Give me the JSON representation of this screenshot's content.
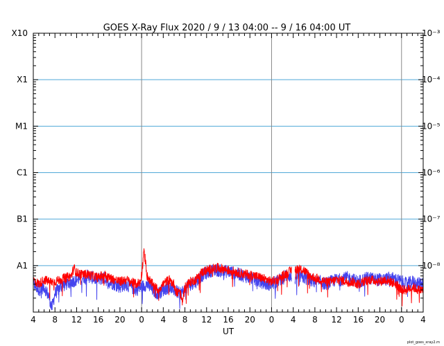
{
  "chart_data": {
    "type": "line",
    "title": "GOES X-Ray Flux   2020  /  9  /  13    04:00 --   9  /  16    04:00    UT",
    "xlabel": "UT",
    "x_tick_labels": [
      "4",
      "8",
      "12",
      "16",
      "20",
      "0",
      "4",
      "8",
      "12",
      "16",
      "20",
      "0",
      "4",
      "8",
      "12",
      "16",
      "20",
      "0",
      "4"
    ],
    "x_range_hours": [
      0,
      72
    ],
    "day_boundaries_hours": [
      20,
      44,
      68
    ],
    "y_scale": "log",
    "y_range": [
      1e-09,
      0.001
    ],
    "y_left_labels": [
      "X10",
      "X1",
      "M1",
      "C1",
      "B1",
      "A1"
    ],
    "y_right_labels": [
      "10⁻³",
      "10⁻⁴",
      "10⁻⁵",
      "10⁻⁶",
      "10⁻⁷",
      "10⁻⁸"
    ],
    "y_right_decades": [
      -3,
      -4,
      -5,
      -6,
      -7,
      -8
    ],
    "grid_lines_flux": [
      0.0001,
      1e-05,
      1e-06,
      1e-07,
      1e-08
    ],
    "series": [
      {
        "color": "#ff0000",
        "points": [
          [
            0,
            5e-09
          ],
          [
            1,
            4e-09
          ],
          [
            2,
            5e-09
          ],
          [
            3,
            4.5e-09
          ],
          [
            4,
            4.5e-09
          ],
          [
            5,
            5e-09
          ],
          [
            6,
            5.5e-09
          ],
          [
            7,
            6e-09
          ],
          [
            7.5,
            9e-09
          ],
          [
            8,
            7e-09
          ],
          [
            9,
            6.5e-09
          ],
          [
            10,
            6.5e-09
          ],
          [
            11,
            6e-09
          ],
          [
            12,
            5.5e-09
          ],
          [
            13,
            6.5e-09
          ],
          [
            14,
            5.5e-09
          ],
          [
            15,
            5e-09
          ],
          [
            16,
            4.5e-09
          ],
          [
            17,
            5e-09
          ],
          [
            18,
            4.5e-09
          ],
          [
            19,
            4e-09
          ],
          [
            19.8,
            4.5e-09
          ],
          [
            20.1,
            8e-09
          ],
          [
            20.4,
            2e-08
          ],
          [
            20.7,
            1.3e-08
          ],
          [
            21,
            6e-09
          ],
          [
            22,
            4e-09
          ],
          [
            23,
            3e-09
          ],
          [
            24,
            4e-09
          ],
          [
            25,
            5e-09
          ],
          [
            26,
            4e-09
          ],
          [
            26.5,
            2.5e-09
          ],
          [
            27,
            3e-09
          ],
          [
            27.5,
            1.6e-09
          ],
          [
            28,
            3.5e-09
          ],
          [
            29,
            4.5e-09
          ],
          [
            30,
            5e-09
          ],
          [
            31,
            7e-09
          ],
          [
            32,
            8e-09
          ],
          [
            33,
            8.5e-09
          ],
          [
            34,
            9e-09
          ],
          [
            35,
            8.5e-09
          ],
          [
            36,
            8e-09
          ],
          [
            37,
            7.5e-09
          ],
          [
            38,
            7e-09
          ],
          [
            39,
            6.5e-09
          ],
          [
            40,
            6.5e-09
          ],
          [
            41,
            6e-09
          ],
          [
            42,
            5.5e-09
          ],
          [
            43,
            5e-09
          ],
          [
            44,
            4.5e-09
          ],
          [
            45,
            5e-09
          ],
          [
            46,
            6e-09
          ],
          [
            47,
            7e-09
          ],
          [
            48,
            8.5e-09
          ],
          [
            49,
            8.5e-09
          ],
          [
            50,
            8e-09
          ],
          [
            51,
            6e-09
          ],
          [
            52,
            5.5e-09
          ],
          [
            53,
            5e-09
          ],
          [
            54,
            4.5e-09
          ],
          [
            55,
            4.5e-09
          ],
          [
            56,
            5e-09
          ],
          [
            57,
            4.8e-09
          ],
          [
            58,
            4.5e-09
          ],
          [
            59,
            4.5e-09
          ],
          [
            60,
            4e-09
          ],
          [
            61,
            4.5e-09
          ],
          [
            62,
            5e-09
          ],
          [
            63,
            4.8e-09
          ],
          [
            64,
            4.5e-09
          ],
          [
            65,
            5e-09
          ],
          [
            66,
            4.5e-09
          ],
          [
            67,
            4e-09
          ],
          [
            68,
            3e-09
          ],
          [
            69,
            3e-09
          ],
          [
            70,
            3.5e-09
          ],
          [
            71,
            3e-09
          ],
          [
            72,
            3e-09
          ]
        ]
      },
      {
        "color": "#4444ee",
        "points": [
          [
            0,
            4e-09
          ],
          [
            1,
            3e-09
          ],
          [
            2,
            3.5e-09
          ],
          [
            3,
            2e-09
          ],
          [
            3.4,
            1.2e-09
          ],
          [
            4,
            2.5e-09
          ],
          [
            5,
            3.5e-09
          ],
          [
            6,
            4e-09
          ],
          [
            7,
            4.5e-09
          ],
          [
            8,
            5e-09
          ],
          [
            9,
            5.5e-09
          ],
          [
            10,
            6e-09
          ],
          [
            11,
            5.5e-09
          ],
          [
            12,
            5e-09
          ],
          [
            13,
            5.5e-09
          ],
          [
            14,
            4.5e-09
          ],
          [
            15,
            4e-09
          ],
          [
            16,
            3.5e-09
          ],
          [
            17,
            4e-09
          ],
          [
            18,
            3.5e-09
          ],
          [
            19,
            3e-09
          ],
          [
            20,
            3.5e-09
          ],
          [
            21,
            4e-09
          ],
          [
            22,
            3e-09
          ],
          [
            23,
            2.5e-09
          ],
          [
            24,
            3e-09
          ],
          [
            25,
            3.5e-09
          ],
          [
            26,
            3e-09
          ],
          [
            27,
            2.5e-09
          ],
          [
            28,
            3e-09
          ],
          [
            29,
            4e-09
          ],
          [
            30,
            4.5e-09
          ],
          [
            31,
            6e-09
          ],
          [
            32,
            7e-09
          ],
          [
            33,
            8e-09
          ],
          [
            34,
            8e-09
          ],
          [
            35,
            7.5e-09
          ],
          [
            36,
            7.5e-09
          ],
          [
            37,
            7e-09
          ],
          [
            38,
            6.5e-09
          ],
          [
            39,
            6e-09
          ],
          [
            40,
            5.5e-09
          ],
          [
            41,
            5e-09
          ],
          [
            42,
            4.5e-09
          ],
          [
            43,
            4e-09
          ],
          [
            44,
            4e-09
          ],
          [
            45,
            4.5e-09
          ],
          [
            46,
            5.5e-09
          ],
          [
            47,
            6.5e-09
          ],
          [
            48,
            5e-09
          ],
          [
            49,
            6e-09
          ],
          [
            50,
            5.5e-09
          ],
          [
            51,
            5e-09
          ],
          [
            52,
            4.5e-09
          ],
          [
            53,
            4.5e-09
          ],
          [
            54,
            4e-09
          ],
          [
            55,
            4.5e-09
          ],
          [
            56,
            5e-09
          ],
          [
            57,
            5e-09
          ],
          [
            58,
            5.5e-09
          ],
          [
            59,
            5e-09
          ],
          [
            60,
            4.5e-09
          ],
          [
            61,
            5e-09
          ],
          [
            62,
            5.5e-09
          ],
          [
            63,
            5e-09
          ],
          [
            64,
            5e-09
          ],
          [
            65,
            5e-09
          ],
          [
            66,
            5.5e-09
          ],
          [
            67,
            5e-09
          ],
          [
            68,
            4.5e-09
          ],
          [
            69,
            4e-09
          ],
          [
            70,
            4.5e-09
          ],
          [
            71,
            4e-09
          ],
          [
            72,
            4.5e-09
          ]
        ]
      }
    ],
    "gaps_hours": [
      [
        47.7,
        48.3
      ]
    ],
    "colors": {
      "grid": "#4fa8d8",
      "day_line": "#888888"
    }
  },
  "footer_note": "plot_goes_xray2.m"
}
